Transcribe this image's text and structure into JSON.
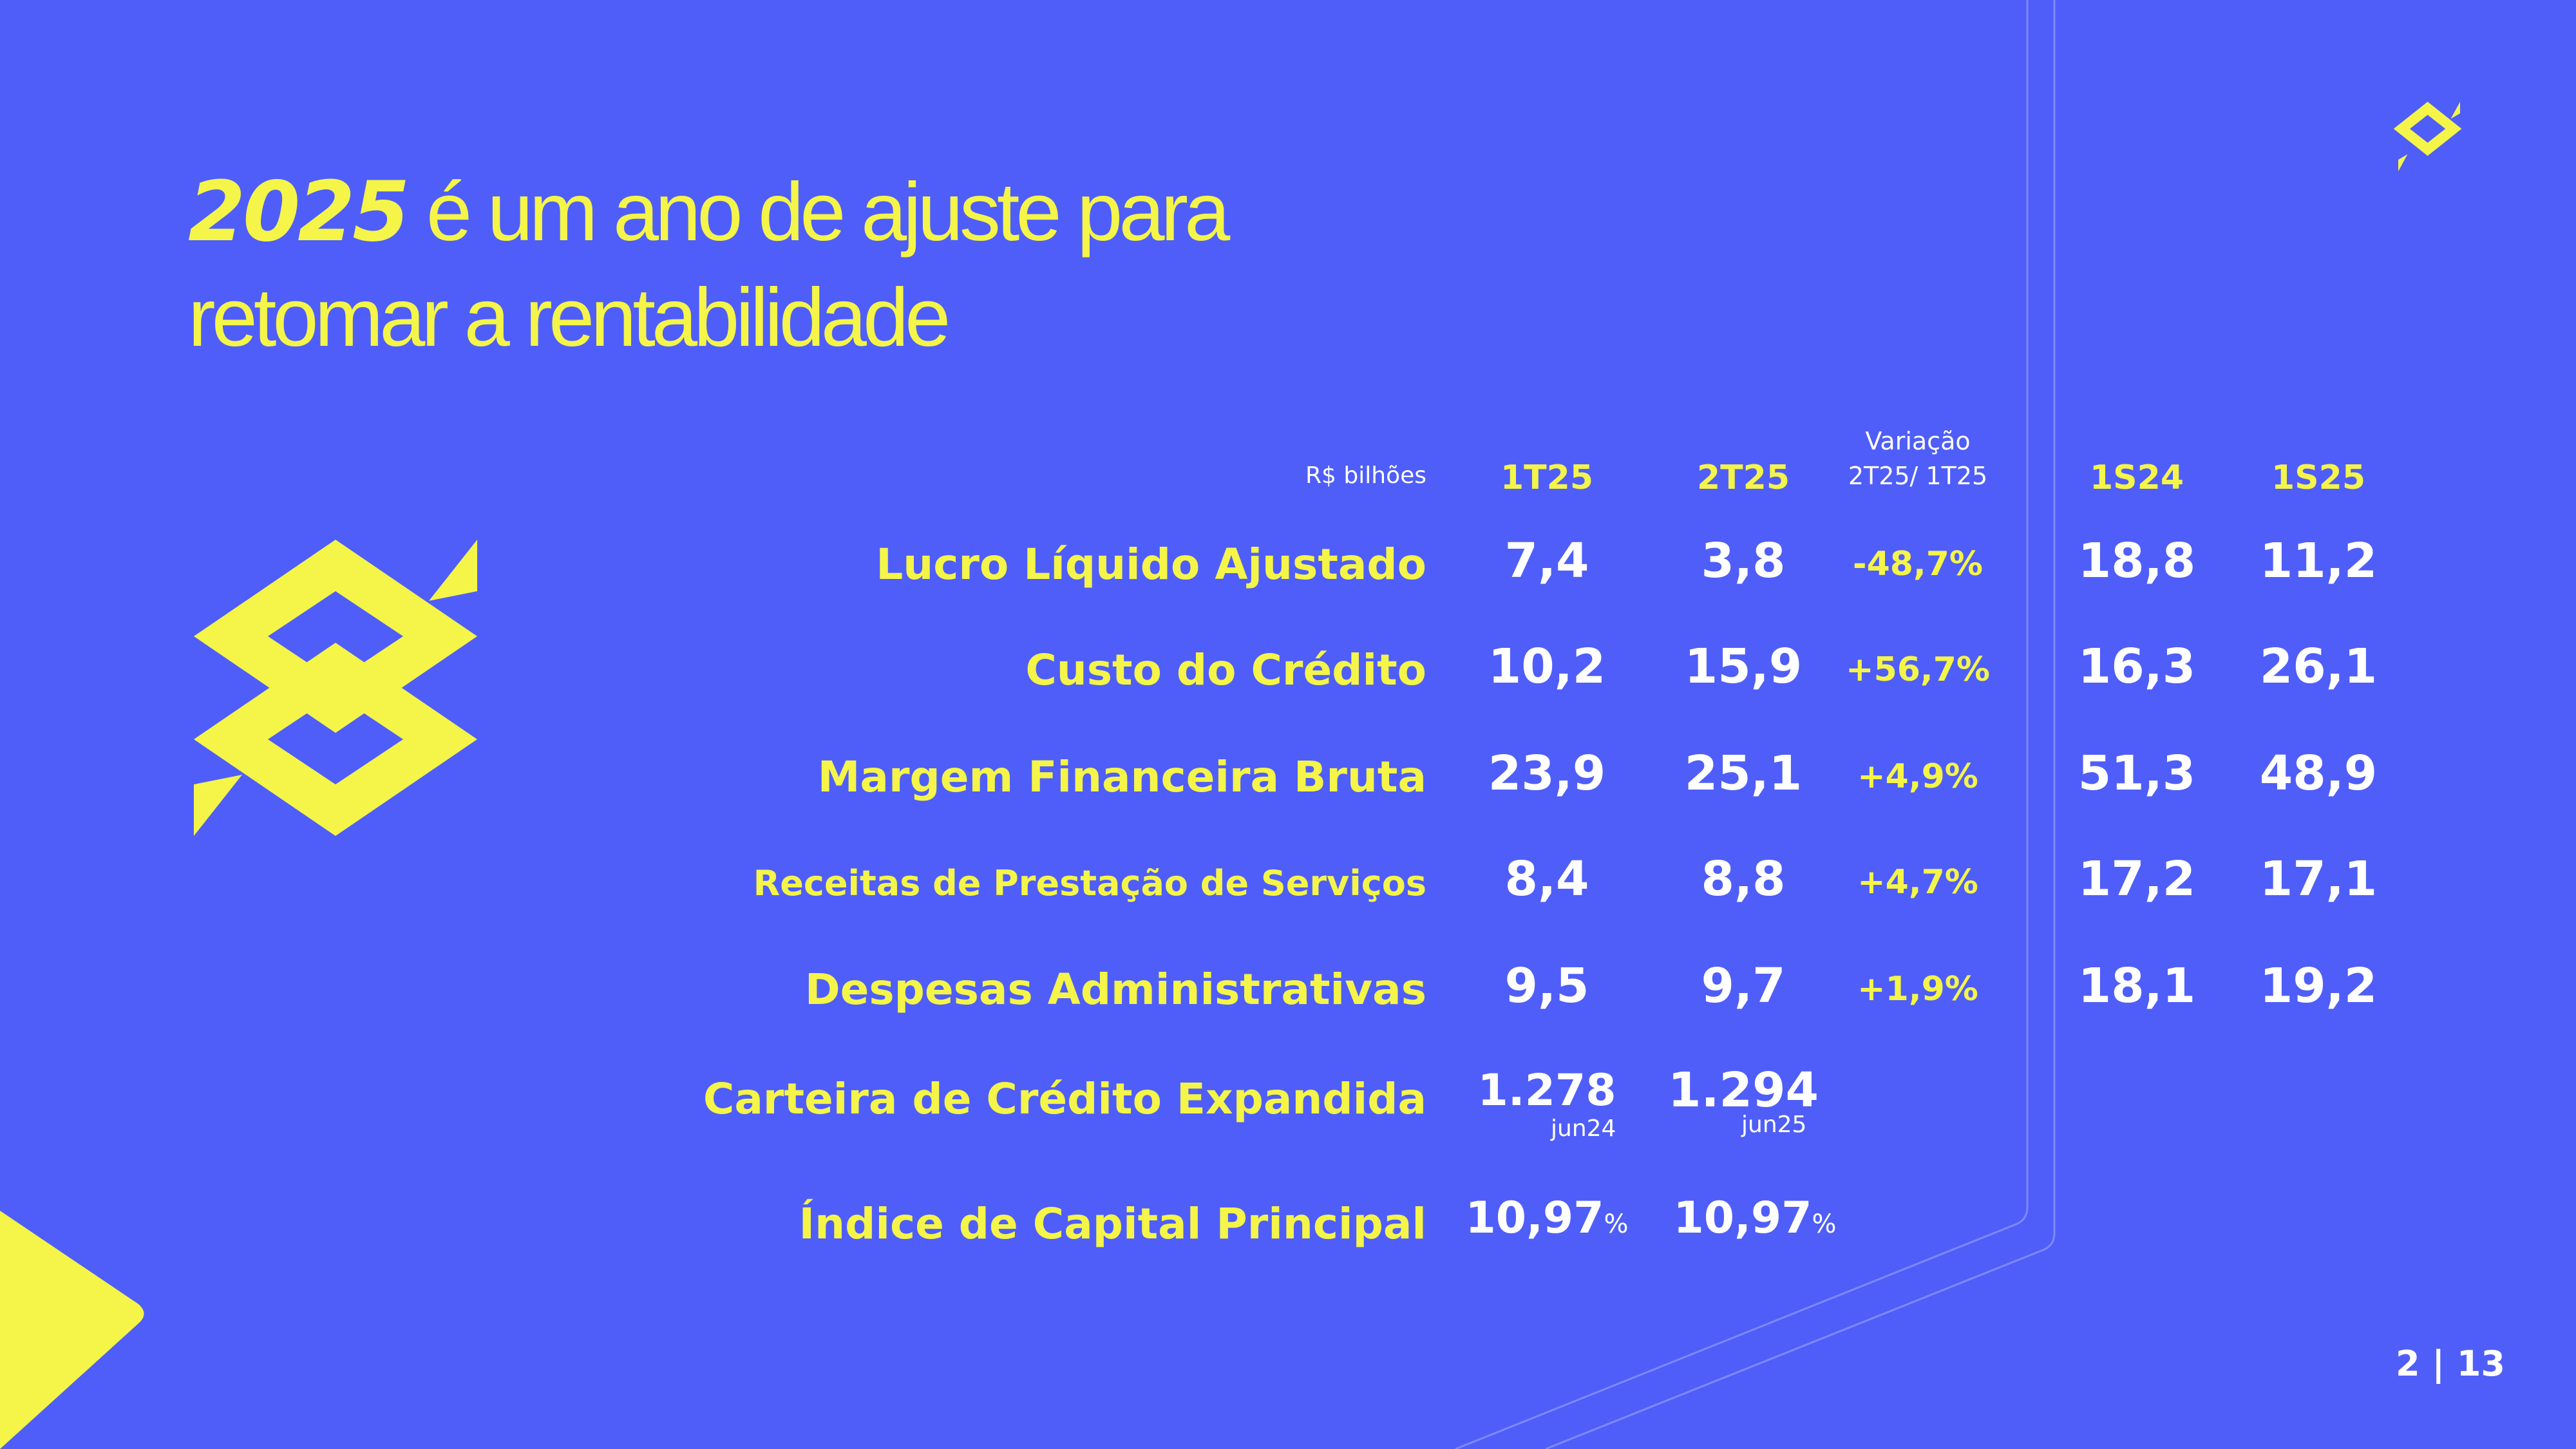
{
  "slide": {
    "title_year": "2025",
    "title_line1_rest": " é um ano de ajuste para",
    "title_line2": "retomar a rentabilidade",
    "unit_label": "R$ bilhões",
    "page_number": "2 | 13",
    "colors": {
      "background": "#4F5EF8",
      "accent_yellow": "#F4F548",
      "text_white": "#FFFFFF"
    },
    "icons": {
      "logo": "banco-do-brasil-logo-icon"
    }
  },
  "table": {
    "headers": {
      "q1": "1T25",
      "q2": "2T25",
      "variation_line1": "Variação",
      "variation_line2": "2T25/ 1T25",
      "h1_24": "1S24",
      "h1_25": "1S25"
    },
    "rows": [
      {
        "label": "Lucro Líquido Ajustado",
        "q1": "7,4",
        "q2": "3,8",
        "variation": "-48,7%",
        "h1_24": "18,8",
        "h1_25": "11,2"
      },
      {
        "label": "Custo do Crédito",
        "q1": "10,2",
        "q2": "15,9",
        "variation": "+56,7%",
        "h1_24": "16,3",
        "h1_25": "26,1"
      },
      {
        "label": "Margem Financeira Bruta",
        "q1": "23,9",
        "q2": "25,1",
        "variation": "+4,9%",
        "h1_24": "51,3",
        "h1_25": "48,9"
      },
      {
        "label": "Receitas  de Prestação de Serviços",
        "q1": "8,4",
        "q2": "8,8",
        "variation": "+4,7%",
        "h1_24": "17,2",
        "h1_25": "17,1"
      },
      {
        "label": "Despesas Administrativas",
        "q1": "9,5",
        "q2": "9,7",
        "variation": "+1,9%",
        "h1_24": "18,1",
        "h1_25": "19,2"
      }
    ],
    "portfolio": {
      "label": "Carteira de Crédito Expandida",
      "q1": "1.278",
      "q1_note": "jun24",
      "q2": "1.294",
      "q2_note": "jun25"
    },
    "capital": {
      "label": "Índice de Capital Principal",
      "q1": "10,97",
      "q2": "10,97",
      "pct_sign": "%"
    }
  }
}
